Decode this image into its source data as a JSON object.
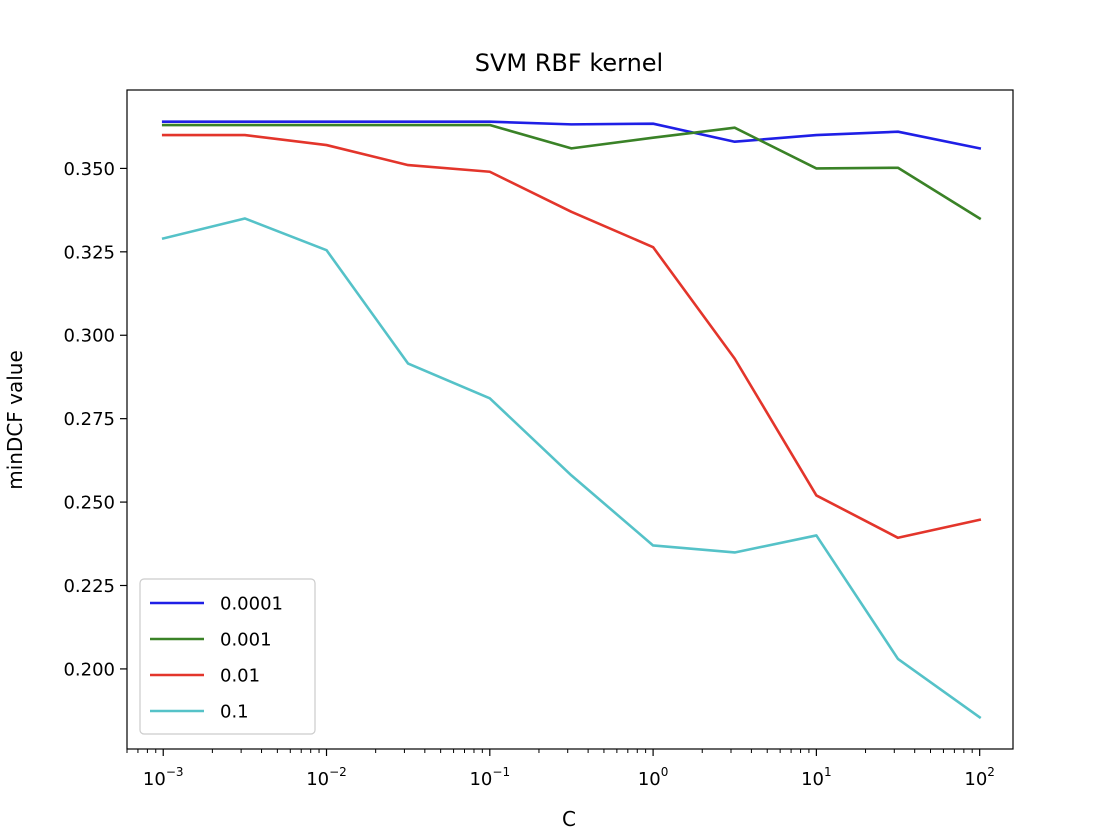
{
  "chart_data": {
    "type": "line",
    "title": "SVM RBF kernel",
    "xlabel": "C",
    "ylabel": "minDCF value",
    "xscale": "log",
    "xlim": [
      0.0006,
      160
    ],
    "ylim": [
      0.176,
      0.3735
    ],
    "grid": false,
    "legend_position": "lower-left",
    "x": [
      0.001,
      0.00316,
      0.01,
      0.0316,
      0.1,
      0.316,
      1,
      3.16,
      10,
      31.6,
      100
    ],
    "x_ticks": [
      {
        "value": 0.001,
        "base": "10",
        "exp": "−3"
      },
      {
        "value": 0.01,
        "base": "10",
        "exp": "−2"
      },
      {
        "value": 0.1,
        "base": "10",
        "exp": "−1"
      },
      {
        "value": 1,
        "base": "10",
        "exp": "0"
      },
      {
        "value": 10,
        "base": "10",
        "exp": "1"
      },
      {
        "value": 100,
        "base": "10",
        "exp": "2"
      }
    ],
    "y_ticks": [
      {
        "value": 0.2,
        "label": "0.200"
      },
      {
        "value": 0.225,
        "label": "0.225"
      },
      {
        "value": 0.25,
        "label": "0.250"
      },
      {
        "value": 0.275,
        "label": "0.275"
      },
      {
        "value": 0.3,
        "label": "0.300"
      },
      {
        "value": 0.325,
        "label": "0.325"
      },
      {
        "value": 0.35,
        "label": "0.350"
      }
    ],
    "series": [
      {
        "name": "0.0001",
        "color": "#1f1fe6",
        "values": [
          0.364,
          0.364,
          0.364,
          0.364,
          0.364,
          0.3632,
          0.3634,
          0.358,
          0.36,
          0.361,
          0.356
        ]
      },
      {
        "name": "0.001",
        "color": "#3a8227",
        "values": [
          0.363,
          0.363,
          0.363,
          0.363,
          0.363,
          0.356,
          0.3592,
          0.3622,
          0.35,
          0.3502,
          0.335
        ]
      },
      {
        "name": "0.01",
        "color": "#e3352b",
        "values": [
          0.36,
          0.36,
          0.357,
          0.351,
          0.349,
          0.337,
          0.3264,
          0.293,
          0.252,
          0.2393,
          0.2447
        ]
      },
      {
        "name": "0.1",
        "color": "#55c2c8",
        "values": [
          0.329,
          0.335,
          0.3255,
          0.2915,
          0.2811,
          0.258,
          0.237,
          0.2349,
          0.24,
          0.203,
          0.1855
        ]
      }
    ]
  }
}
